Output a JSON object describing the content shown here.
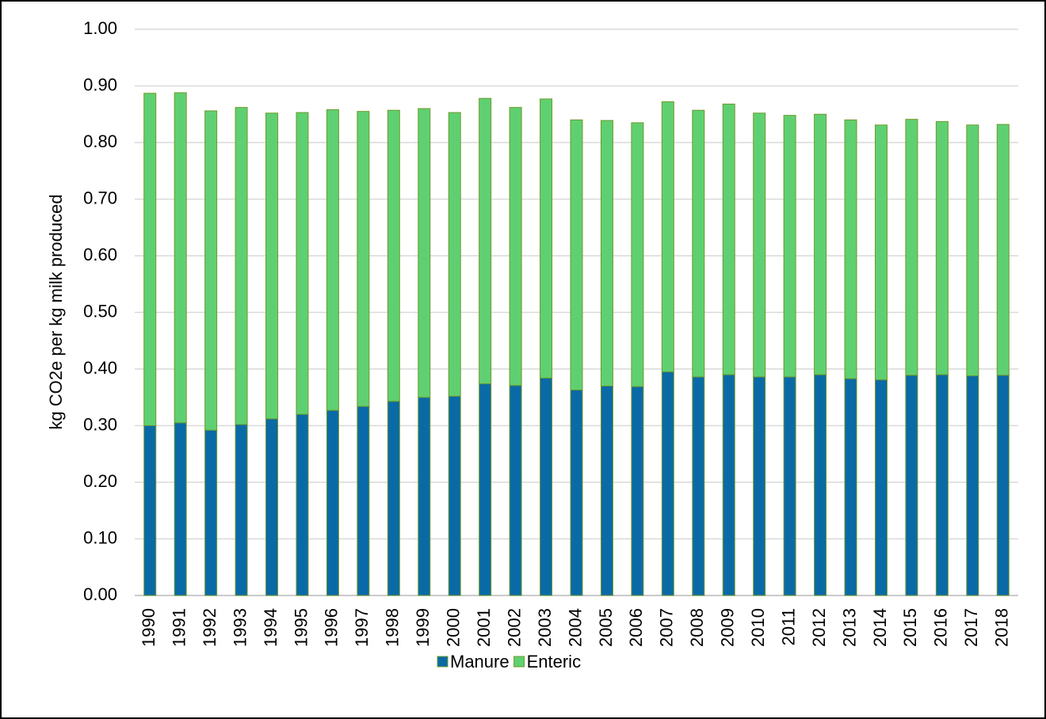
{
  "chart_data": {
    "type": "stacked_bar",
    "y_label": "kg CO2e per kg milk produced",
    "categories": [
      "1990",
      "1991",
      "1992",
      "1993",
      "1994",
      "1995",
      "1996",
      "1997",
      "1998",
      "1999",
      "2000",
      "2001",
      "2002",
      "2003",
      "2004",
      "2005",
      "2006",
      "2007",
      "2008",
      "2009",
      "2010",
      "2011",
      "2012",
      "2013",
      "2014",
      "2015",
      "2016",
      "2017",
      "2018"
    ],
    "series": [
      {
        "name": "Manure",
        "color": "#0a6aa6",
        "values": [
          0.3,
          0.305,
          0.292,
          0.302,
          0.312,
          0.32,
          0.327,
          0.334,
          0.343,
          0.35,
          0.352,
          0.374,
          0.371,
          0.384,
          0.363,
          0.37,
          0.369,
          0.395,
          0.386,
          0.39,
          0.386,
          0.386,
          0.39,
          0.383,
          0.381,
          0.389,
          0.39,
          0.388,
          0.389
        ]
      },
      {
        "name": "Enteric",
        "color": "#5fd071",
        "values": [
          0.587,
          0.583,
          0.564,
          0.56,
          0.54,
          0.533,
          0.531,
          0.521,
          0.514,
          0.51,
          0.501,
          0.504,
          0.491,
          0.493,
          0.477,
          0.469,
          0.466,
          0.477,
          0.471,
          0.478,
          0.466,
          0.462,
          0.46,
          0.457,
          0.45,
          0.452,
          0.447,
          0.443,
          0.443
        ]
      }
    ],
    "ylim": [
      0,
      1
    ],
    "yticks": [
      {
        "value": 0,
        "label": "0.00"
      },
      {
        "value": 0.1,
        "label": "0.10"
      },
      {
        "value": 0.2,
        "label": "0.20"
      },
      {
        "value": 0.3,
        "label": "0.30"
      },
      {
        "value": 0.4,
        "label": "0.40"
      },
      {
        "value": 0.5,
        "label": "0.50"
      },
      {
        "value": 0.6,
        "label": "0.60"
      },
      {
        "value": 0.7,
        "label": "0.70"
      },
      {
        "value": 0.8,
        "label": "0.80"
      },
      {
        "value": 0.9,
        "label": "0.90"
      },
      {
        "value": 1,
        "label": "1.00"
      }
    ],
    "grid": true,
    "legend": "bottom"
  }
}
